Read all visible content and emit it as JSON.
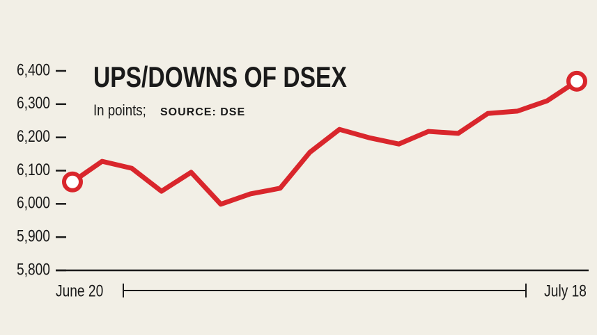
{
  "chart_data": {
    "type": "line",
    "title": "UPS/DOWNS OF DSEX",
    "subtitle": "In points;",
    "source": "SOURCE: DSE",
    "categories": [
      "June 20",
      null,
      null,
      null,
      null,
      null,
      null,
      null,
      null,
      null,
      null,
      null,
      null,
      null,
      null,
      null,
      null,
      "July 18"
    ],
    "series": [
      {
        "name": "DSEX",
        "color": "#d9262c",
        "values": [
          6066,
          6128,
          6107,
          6038,
          6095,
          5999,
          6030,
          6047,
          6155,
          6224,
          6199,
          6180,
          6218,
          6212,
          6272,
          6279,
          6310,
          6369
        ]
      }
    ],
    "ylim": [
      5800,
      6400
    ],
    "yticks": [
      {
        "value": 5800,
        "label": "5,800"
      },
      {
        "value": 5900,
        "label": "5,900"
      },
      {
        "value": 6000,
        "label": "6,000"
      },
      {
        "value": 6100,
        "label": "6,100"
      },
      {
        "value": 6200,
        "label": "6,200"
      },
      {
        "value": 6300,
        "label": "6,300"
      },
      {
        "value": 6400,
        "label": "6,400"
      }
    ],
    "grid": false
  }
}
